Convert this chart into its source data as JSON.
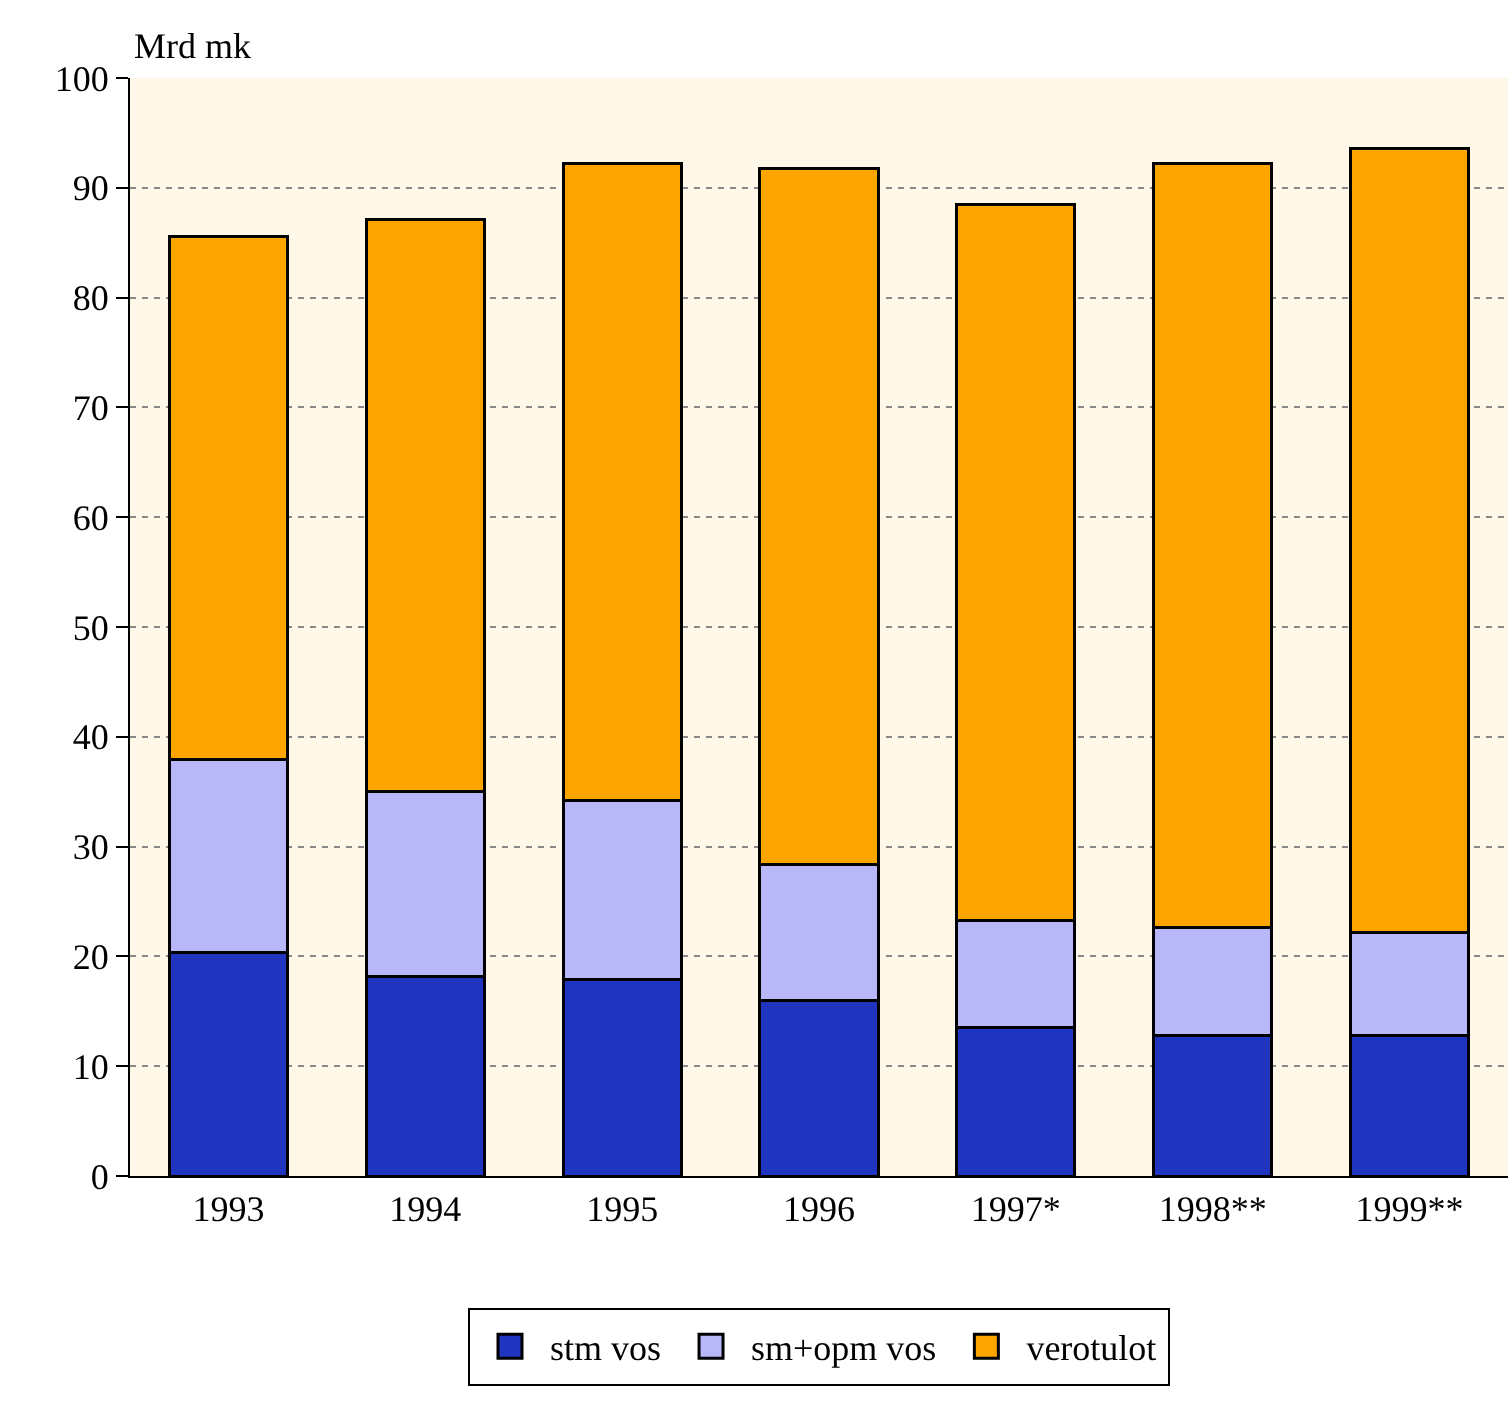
{
  "chart_data": {
    "type": "bar",
    "stacked": true,
    "ylabel": "Mrd mk",
    "categories": [
      "1993",
      "1994",
      "1995",
      "1996",
      "1997*",
      "1998**",
      "1999**"
    ],
    "series": [
      {
        "name": "stm vos",
        "color": "#1f35c0",
        "values": [
          20.4,
          18.2,
          17.9,
          16.0,
          13.5,
          12.8,
          12.8
        ]
      },
      {
        "name": "sm+opm vos",
        "color": "#b8b8f8",
        "values": [
          17.5,
          16.8,
          16.3,
          12.4,
          9.8,
          9.8,
          9.4
        ]
      },
      {
        "name": "verotulot",
        "color": "#ffa500",
        "values": [
          47.7,
          52.1,
          58.0,
          63.4,
          65.2,
          69.6,
          71.4
        ]
      }
    ],
    "ylim": [
      0,
      100
    ],
    "yticks": [
      0,
      10,
      20,
      30,
      40,
      50,
      60,
      70,
      80,
      90,
      100
    ],
    "grid": "y",
    "legend": "bottom"
  }
}
